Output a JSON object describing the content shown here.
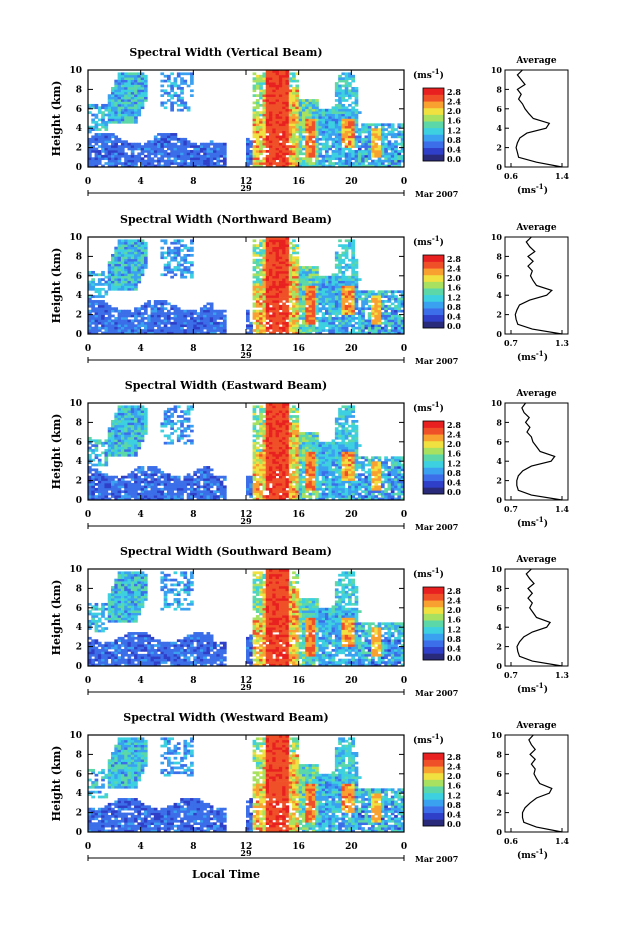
{
  "colors": {
    "background": "#ffffff",
    "axis": "#000000",
    "colorbar": [
      "#2a2a7a",
      "#2f3fc8",
      "#3b6ee8",
      "#3aa0f0",
      "#3cd0e0",
      "#5cd8a8",
      "#a8e060",
      "#f0e040",
      "#f8a030",
      "#f05028",
      "#e82020"
    ]
  },
  "chart_data": [
    {
      "type": "heatmap",
      "title": "Spectral Width (Vertical Beam)",
      "ylabel": "Height (km)",
      "y_ticks": [
        "0",
        "2",
        "4",
        "6",
        "8",
        "10"
      ],
      "x_ticks": [
        "0",
        "4",
        "8",
        "12",
        "16",
        "20",
        "0"
      ],
      "day_label": "29",
      "date_label": "Mar 2007",
      "colorbar_unit": "(ms",
      "colorbar_unit_exp": "-1",
      "colorbar_unit_close": ")",
      "colorbar_ticks": [
        "2.8",
        "2.4",
        "2.0",
        "1.6",
        "1.2",
        "0.8",
        "0.4",
        "0.0"
      ],
      "profile": {
        "title": "Average",
        "xlabel": "(ms",
        "xlabel_exp": "-1",
        "xlabel_close": ")",
        "x_ticks": [
          "0.6",
          "1.4"
        ],
        "xlim": [
          0.6,
          1.4
        ],
        "y_ticks": [
          "0",
          "2",
          "4",
          "6",
          "8",
          "10"
        ],
        "height_km": [
          0,
          0.5,
          1,
          1.5,
          2,
          2.5,
          3,
          3.5,
          4,
          4.5,
          5,
          5.5,
          6,
          6.5,
          7,
          7.5,
          8,
          8.5,
          9,
          9.5,
          10
        ],
        "values": [
          1.4,
          1.0,
          0.72,
          0.7,
          0.68,
          0.7,
          0.74,
          0.85,
          1.15,
          1.2,
          0.95,
          0.88,
          0.82,
          0.78,
          0.72,
          0.76,
          0.7,
          0.82,
          0.76,
          0.7,
          0.78
        ]
      }
    },
    {
      "type": "heatmap",
      "title": "Spectral Width (Northward Beam)",
      "ylabel": "Height (km)",
      "y_ticks": [
        "0",
        "2",
        "4",
        "6",
        "8",
        "10"
      ],
      "x_ticks": [
        "0",
        "4",
        "8",
        "12",
        "16",
        "20",
        "0"
      ],
      "day_label": "29",
      "date_label": "Mar 2007",
      "colorbar_unit": "(ms",
      "colorbar_unit_exp": "-1",
      "colorbar_unit_close": ")",
      "colorbar_ticks": [
        "2.8",
        "2.4",
        "2.0",
        "1.6",
        "1.2",
        "0.8",
        "0.4",
        "0.0"
      ],
      "profile": {
        "title": "Average",
        "xlabel": "(ms",
        "xlabel_exp": "-1",
        "xlabel_close": ")",
        "x_ticks": [
          "0.7",
          "1.3"
        ],
        "xlim": [
          0.7,
          1.3
        ],
        "y_ticks": [
          "0",
          "2",
          "4",
          "6",
          "8",
          "10"
        ],
        "height_km": [
          0,
          0.5,
          1,
          1.5,
          2,
          2.5,
          3,
          3.5,
          4,
          4.5,
          5,
          5.5,
          6,
          6.5,
          7,
          7.5,
          8,
          8.5,
          9,
          9.5,
          10
        ],
        "values": [
          1.3,
          0.95,
          0.78,
          0.76,
          0.75,
          0.77,
          0.8,
          0.92,
          1.12,
          1.18,
          1.0,
          0.96,
          0.93,
          0.95,
          0.9,
          0.96,
          0.9,
          0.98,
          0.92,
          0.88,
          0.94
        ]
      }
    },
    {
      "type": "heatmap",
      "title": "Spectral Width (Eastward Beam)",
      "ylabel": "Height (km)",
      "y_ticks": [
        "0",
        "2",
        "4",
        "6",
        "8",
        "10"
      ],
      "x_ticks": [
        "0",
        "4",
        "8",
        "12",
        "16",
        "20",
        "0"
      ],
      "day_label": "29",
      "date_label": "Mar 2007",
      "colorbar_unit": "(ms",
      "colorbar_unit_exp": "-1",
      "colorbar_unit_close": ")",
      "colorbar_ticks": [
        "2.8",
        "2.4",
        "2.0",
        "1.6",
        "1.2",
        "0.8",
        "0.4",
        "0.0"
      ],
      "profile": {
        "title": "Average",
        "xlabel": "(ms",
        "xlabel_exp": "-1",
        "xlabel_close": ")",
        "x_ticks": [
          "0.7",
          "1.4"
        ],
        "xlim": [
          0.7,
          1.4
        ],
        "y_ticks": [
          "0",
          "2",
          "4",
          "6",
          "8",
          "10"
        ],
        "height_km": [
          0,
          0.5,
          1,
          1.5,
          2,
          2.5,
          3,
          3.5,
          4,
          4.5,
          5,
          5.5,
          6,
          6.5,
          7,
          7.5,
          8,
          8.5,
          9,
          9.5,
          10
        ],
        "values": [
          1.4,
          0.98,
          0.8,
          0.78,
          0.78,
          0.8,
          0.86,
          0.98,
          1.25,
          1.3,
          1.1,
          1.05,
          1.0,
          0.98,
          0.92,
          0.96,
          0.9,
          0.95,
          0.88,
          0.85,
          0.9
        ]
      }
    },
    {
      "type": "heatmap",
      "title": "Spectral Width (Southward Beam)",
      "ylabel": "Height (km)",
      "y_ticks": [
        "0",
        "2",
        "4",
        "6",
        "8",
        "10"
      ],
      "x_ticks": [
        "0",
        "4",
        "8",
        "12",
        "16",
        "20",
        "0"
      ],
      "day_label": "29",
      "date_label": "Mar 2007",
      "colorbar_unit": "(ms",
      "colorbar_unit_exp": "-1",
      "colorbar_unit_close": ")",
      "colorbar_ticks": [
        "2.8",
        "2.4",
        "2.0",
        "1.6",
        "1.2",
        "0.8",
        "0.4",
        "0.0"
      ],
      "profile": {
        "title": "Average",
        "xlabel": "(ms",
        "xlabel_exp": "-1",
        "xlabel_close": ")",
        "x_ticks": [
          "0.7",
          "1.3"
        ],
        "xlim": [
          0.7,
          1.3
        ],
        "y_ticks": [
          "0",
          "2",
          "4",
          "6",
          "8",
          "10"
        ],
        "height_km": [
          0,
          0.5,
          1,
          1.5,
          2,
          2.5,
          3,
          3.5,
          4,
          4.5,
          5,
          5.5,
          6,
          6.5,
          7,
          7.5,
          8,
          8.5,
          9,
          9.5,
          10
        ],
        "values": [
          1.3,
          0.95,
          0.8,
          0.78,
          0.77,
          0.8,
          0.85,
          0.95,
          1.12,
          1.16,
          1.0,
          0.96,
          0.92,
          0.95,
          0.9,
          0.95,
          0.9,
          0.97,
          0.92,
          0.88,
          0.94
        ]
      }
    },
    {
      "type": "heatmap",
      "title": "Spectral Width (Westward Beam)",
      "ylabel": "Height (km)",
      "xlabel": "Local Time",
      "y_ticks": [
        "0",
        "2",
        "4",
        "6",
        "8",
        "10"
      ],
      "x_ticks": [
        "0",
        "4",
        "8",
        "12",
        "16",
        "20",
        "0"
      ],
      "day_label": "29",
      "date_label": "Mar 2007",
      "colorbar_unit": "(ms",
      "colorbar_unit_exp": "-1",
      "colorbar_unit_close": ")",
      "colorbar_ticks": [
        "2.8",
        "2.4",
        "2.0",
        "1.6",
        "1.2",
        "0.8",
        "0.4",
        "0.0"
      ],
      "profile": {
        "title": "Average",
        "xlabel": "(ms",
        "xlabel_exp": "-1",
        "xlabel_close": ")",
        "x_ticks": [
          "0.6",
          "1.4"
        ],
        "xlim": [
          0.6,
          1.4
        ],
        "y_ticks": [
          "0",
          "2",
          "4",
          "6",
          "8",
          "10"
        ],
        "height_km": [
          0,
          0.5,
          1,
          1.5,
          2,
          2.5,
          3,
          3.5,
          4,
          4.5,
          5,
          5.5,
          6,
          6.5,
          7,
          7.5,
          8,
          8.5,
          9,
          9.5,
          10
        ],
        "values": [
          1.4,
          1.0,
          0.8,
          0.78,
          0.78,
          0.82,
          0.9,
          1.0,
          1.2,
          1.24,
          1.05,
          1.0,
          0.96,
          0.98,
          0.92,
          0.98,
          0.9,
          0.98,
          0.92,
          0.88,
          0.95
        ]
      }
    }
  ]
}
